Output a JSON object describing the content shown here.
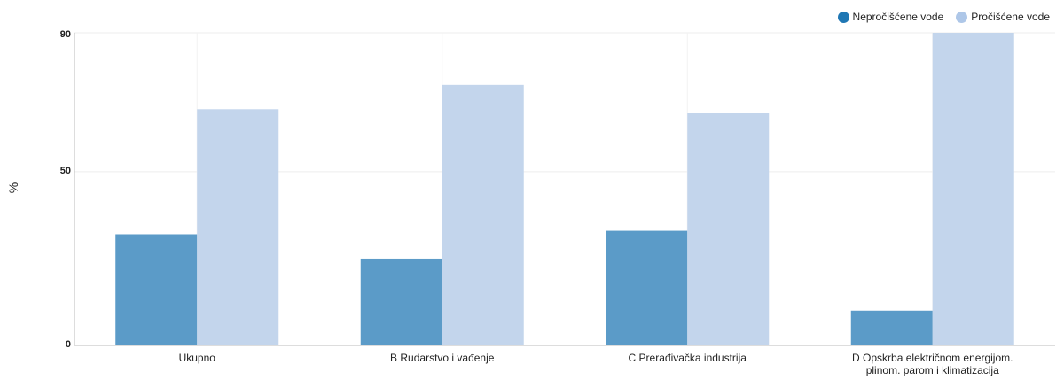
{
  "chart_data": {
    "type": "bar",
    "categories": [
      "Ukupno",
      "B Rudarstvo i vađenje",
      "C Prerađivačka industrija",
      "D Opskrba električnom energijom. plinom. parom i klimatizacija"
    ],
    "series": [
      {
        "name": "Nepročišćene vode",
        "color": "#5b9bc8",
        "legend_color": "#1f77b4",
        "values": [
          32,
          25,
          33,
          10
        ]
      },
      {
        "name": "Pročišćene vode",
        "color": "#c3d5ec",
        "legend_color": "#aec7e8",
        "values": [
          68,
          75,
          67,
          90
        ]
      }
    ],
    "ylabel": "%",
    "xlabel": "",
    "ylim": [
      0,
      90
    ],
    "yticks": [
      0,
      50,
      90
    ],
    "grid": true,
    "legend_position": "top-right"
  }
}
